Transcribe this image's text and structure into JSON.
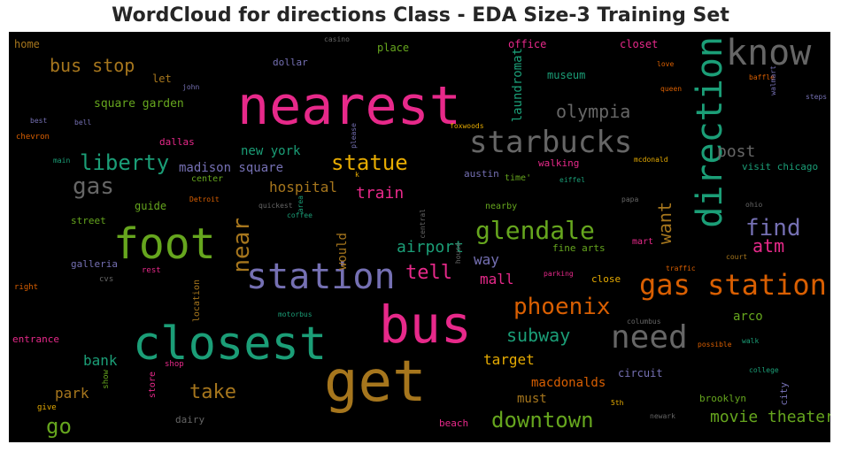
{
  "title": "WordCloud for directions Class - EDA Size-3 Training Set",
  "colors": {
    "pink": "#e7298a",
    "green": "#1b9e77",
    "olive": "#66a61e",
    "orange": "#d95f02",
    "gold": "#e6ab02",
    "brown": "#a6761d",
    "purple": "#7570b3",
    "gray": "#666666"
  },
  "words": [
    {
      "text": "nearest",
      "color": "pink"
    },
    {
      "text": "closest",
      "color": "green"
    },
    {
      "text": "get",
      "color": "brown"
    },
    {
      "text": "bus",
      "color": "pink"
    },
    {
      "text": "foot",
      "color": "olive"
    },
    {
      "text": "station",
      "color": "purple"
    },
    {
      "text": "direction",
      "color": "green"
    },
    {
      "text": "know",
      "color": "gray"
    },
    {
      "text": "starbucks",
      "color": "gray"
    },
    {
      "text": "gas station",
      "color": "orange"
    },
    {
      "text": "need",
      "color": "gray"
    },
    {
      "text": "glendale",
      "color": "olive"
    },
    {
      "text": "phoenix",
      "color": "orange"
    },
    {
      "text": "downtown",
      "color": "olive"
    },
    {
      "text": "liberty",
      "color": "green"
    },
    {
      "text": "statue",
      "color": "gold"
    },
    {
      "text": "bus stop",
      "color": "brown"
    },
    {
      "text": "gas",
      "color": "gray"
    },
    {
      "text": "find",
      "color": "purple"
    },
    {
      "text": "near",
      "color": "brown"
    },
    {
      "text": "olympia",
      "color": "gray"
    },
    {
      "text": "want",
      "color": "brown"
    },
    {
      "text": "go",
      "color": "olive"
    },
    {
      "text": "take",
      "color": "brown"
    },
    {
      "text": "tell",
      "color": "pink"
    },
    {
      "text": "subway",
      "color": "green"
    },
    {
      "text": "movie theater",
      "color": "olive"
    },
    {
      "text": "atm",
      "color": "pink"
    },
    {
      "text": "train",
      "color": "pink"
    },
    {
      "text": "airport",
      "color": "green"
    },
    {
      "text": "post",
      "color": "gray"
    },
    {
      "text": "hospital",
      "color": "brown"
    },
    {
      "text": "bank",
      "color": "green"
    },
    {
      "text": "target",
      "color": "gold"
    },
    {
      "text": "park",
      "color": "brown"
    },
    {
      "text": "laundromat",
      "color": "green"
    },
    {
      "text": "would",
      "color": "brown"
    },
    {
      "text": "way",
      "color": "purple"
    },
    {
      "text": "mall",
      "color": "pink"
    },
    {
      "text": "arco",
      "color": "olive"
    },
    {
      "text": "madison square",
      "color": "purple"
    },
    {
      "text": "new york",
      "color": "green"
    },
    {
      "text": "square garden",
      "color": "olive"
    },
    {
      "text": "macdonalds",
      "color": "orange"
    },
    {
      "text": "must",
      "color": "brown"
    },
    {
      "text": "museum",
      "color": "green"
    },
    {
      "text": "guide",
      "color": "olive"
    },
    {
      "text": "visit chicago",
      "color": "green"
    },
    {
      "text": "home",
      "color": "brown"
    },
    {
      "text": "office",
      "color": "pink"
    },
    {
      "text": "closet",
      "color": "pink"
    },
    {
      "text": "place",
      "color": "olive"
    },
    {
      "text": "let",
      "color": "brown"
    },
    {
      "text": "dallas",
      "color": "pink"
    },
    {
      "text": "circuit",
      "color": "purple"
    },
    {
      "text": "brooklyn",
      "color": "olive"
    },
    {
      "text": "walking",
      "color": "pink"
    },
    {
      "text": "austin",
      "color": "purple"
    },
    {
      "text": "dollar",
      "color": "purple"
    },
    {
      "text": "street",
      "color": "olive"
    },
    {
      "text": "galleria",
      "color": "purple"
    },
    {
      "text": "entrance",
      "color": "pink"
    },
    {
      "text": "fine arts",
      "color": "olive"
    },
    {
      "text": "close",
      "color": "gold"
    },
    {
      "text": "city",
      "color": "purple"
    },
    {
      "text": "dairy",
      "color": "gray"
    },
    {
      "text": "beach",
      "color": "pink"
    },
    {
      "text": "nearby",
      "color": "olive"
    },
    {
      "text": "mart",
      "color": "pink"
    },
    {
      "text": "center",
      "color": "olive"
    },
    {
      "text": "time'",
      "color": "olive"
    },
    {
      "text": "location",
      "color": "brown"
    },
    {
      "text": "store",
      "color": "pink"
    },
    {
      "text": "rest",
      "color": "pink"
    },
    {
      "text": "cvs",
      "color": "gray"
    },
    {
      "text": "right",
      "color": "orange"
    },
    {
      "text": "shop",
      "color": "pink"
    },
    {
      "text": "show",
      "color": "olive"
    },
    {
      "text": "give",
      "color": "gold"
    },
    {
      "text": "chevron",
      "color": "orange"
    },
    {
      "text": "best",
      "color": "purple"
    },
    {
      "text": "bell",
      "color": "purple"
    },
    {
      "text": "main",
      "color": "green"
    },
    {
      "text": "john",
      "color": "purple"
    },
    {
      "text": "casino",
      "color": "gray"
    },
    {
      "text": "love",
      "color": "orange"
    },
    {
      "text": "queen",
      "color": "orange"
    },
    {
      "text": "baffle",
      "color": "orange"
    },
    {
      "text": "walmart",
      "color": "purple"
    },
    {
      "text": "steps",
      "color": "purple"
    },
    {
      "text": "foxwoods",
      "color": "gold"
    },
    {
      "text": "mcdonald",
      "color": "gold"
    },
    {
      "text": "eiffel",
      "color": "green"
    },
    {
      "text": "please",
      "color": "purple"
    },
    {
      "text": "k",
      "color": "gold"
    },
    {
      "text": "Detroit",
      "color": "orange"
    },
    {
      "text": "quickest",
      "color": "gray"
    },
    {
      "text": "area",
      "color": "green"
    },
    {
      "text": "coffee",
      "color": "green"
    },
    {
      "text": "central",
      "color": "gray"
    },
    {
      "text": "house",
      "color": "gray"
    },
    {
      "text": "papa",
      "color": "gray"
    },
    {
      "text": "ohio",
      "color": "gray"
    },
    {
      "text": "court",
      "color": "brown"
    },
    {
      "text": "traffic",
      "color": "orange"
    },
    {
      "text": "parking",
      "color": "pink"
    },
    {
      "text": "columbus",
      "color": "gray"
    },
    {
      "text": "possible",
      "color": "orange"
    },
    {
      "text": "walk",
      "color": "green"
    },
    {
      "text": "college",
      "color": "green"
    },
    {
      "text": "newark",
      "color": "gray"
    },
    {
      "text": "5th",
      "color": "gold"
    },
    {
      "text": "motorbus",
      "color": "green"
    }
  ]
}
